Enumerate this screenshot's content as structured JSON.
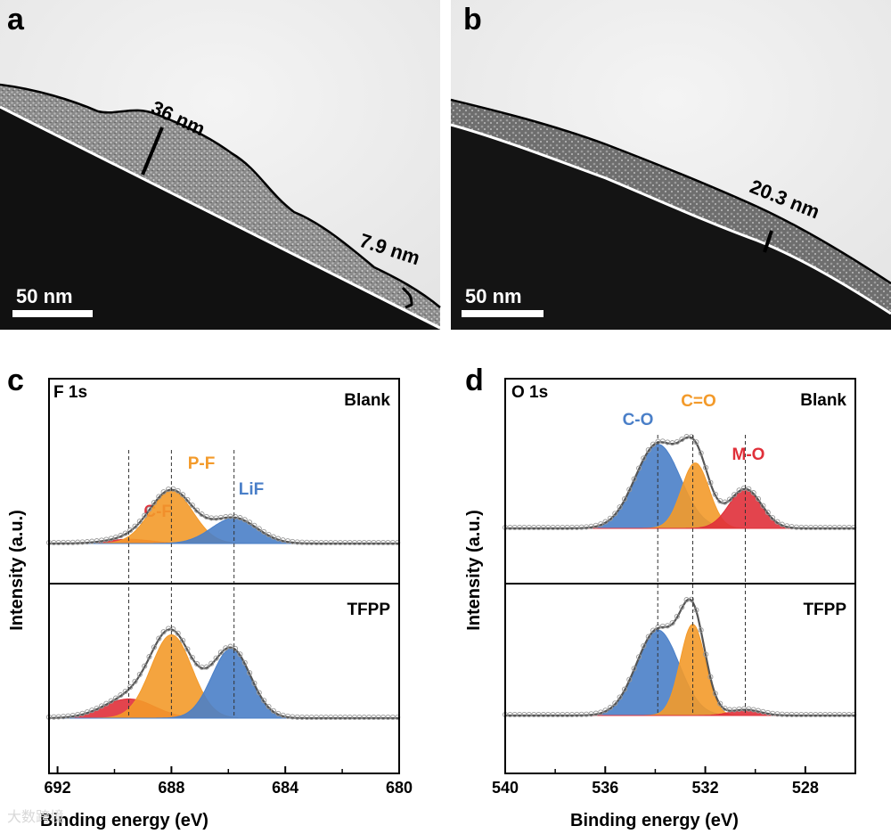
{
  "figure": {
    "watermark": "大数跨境",
    "panel_a": {
      "letter": "a",
      "thickness_major": "36 nm",
      "thickness_minor": "7.9 nm",
      "scale_bar": "50 nm"
    },
    "panel_b": {
      "letter": "b",
      "thickness": "20.3 nm",
      "scale_bar": "50 nm"
    }
  },
  "chart_data": [
    {
      "id": "c",
      "type": "area",
      "title": "F 1s",
      "xlabel": "Binding energy (eV)",
      "ylabel": "Intensity (a.u.)",
      "xlim": [
        692.3,
        680
      ],
      "xticks": [
        692,
        688,
        684,
        680
      ],
      "colors": {
        "C-F": "#e0303a",
        "P-F": "#f39a2a",
        "LiF": "#4a7fc8"
      },
      "subplots": [
        {
          "label": "Blank",
          "components": [
            {
              "name": "C-F",
              "center": 689.5,
              "height": 0.05,
              "width": 0.8
            },
            {
              "name": "P-F",
              "center": 688.0,
              "height": 0.62,
              "width": 0.75
            },
            {
              "name": "LiF",
              "center": 685.8,
              "height": 0.3,
              "width": 0.8
            }
          ]
        },
        {
          "label": "TFPP",
          "components": [
            {
              "name": "C-F",
              "center": 689.5,
              "height": 0.18,
              "width": 0.9
            },
            {
              "name": "P-F",
              "center": 688.0,
              "height": 0.78,
              "width": 0.72
            },
            {
              "name": "LiF",
              "center": 685.9,
              "height": 0.65,
              "width": 0.68
            }
          ]
        }
      ],
      "dashed_lines": [
        689.5,
        688.0,
        685.8
      ]
    },
    {
      "id": "d",
      "type": "area",
      "title": "O 1s",
      "xlabel": "Binding energy (eV)",
      "ylabel": "Intensity (a.u.)",
      "xlim": [
        540,
        526
      ],
      "xticks": [
        540,
        536,
        532,
        528
      ],
      "colors": {
        "C-O": "#4a7fc8",
        "C=O": "#f39a2a",
        "M-O": "#e0303a"
      },
      "subplots": [
        {
          "label": "Blank",
          "components": [
            {
              "name": "C-O",
              "center": 533.9,
              "height": 0.9,
              "width": 0.9
            },
            {
              "name": "C=O",
              "center": 532.4,
              "height": 0.7,
              "width": 0.55
            },
            {
              "name": "M-O",
              "center": 530.4,
              "height": 0.42,
              "width": 0.65
            }
          ]
        },
        {
          "label": "TFPP",
          "components": [
            {
              "name": "C-O",
              "center": 533.9,
              "height": 0.75,
              "width": 0.85
            },
            {
              "name": "C=O",
              "center": 532.5,
              "height": 0.8,
              "width": 0.5
            },
            {
              "name": "M-O",
              "center": 530.4,
              "height": 0.05,
              "width": 0.6
            }
          ]
        }
      ],
      "dashed_lines": [
        533.9,
        532.5,
        530.4
      ]
    }
  ]
}
